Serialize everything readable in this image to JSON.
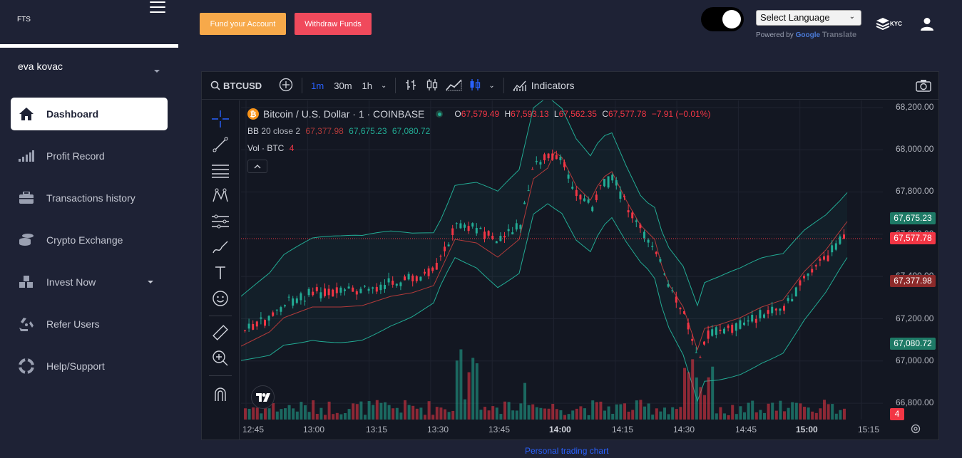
{
  "brand": "FTS",
  "user": {
    "name": "eva kovac"
  },
  "nav": {
    "items": [
      {
        "label": "Dashboard",
        "icon": "home-icon"
      },
      {
        "label": "Profit Record",
        "icon": "bars-signal-icon"
      },
      {
        "label": "Transactions history",
        "icon": "briefcase-icon"
      },
      {
        "label": "Crypto Exchange",
        "icon": "coins-icon"
      },
      {
        "label": "Invest Now",
        "icon": "cubes-icon"
      },
      {
        "label": "Refer Users",
        "icon": "recycle-icon"
      },
      {
        "label": "Help/Support",
        "icon": "life-ring-icon"
      }
    ]
  },
  "topbar": {
    "fund_label": "Fund your Account",
    "withdraw_label": "Withdraw Funds",
    "language_label": "Select Language",
    "powered_by": "Powered by",
    "google": "Google",
    "translate": "Translate",
    "kyc": "KYC"
  },
  "chart": {
    "symbol": "BTCUSD",
    "intervals": [
      "1m",
      "30m",
      "1h"
    ],
    "active_interval": "1m",
    "indicators_label": "Indicators",
    "title": "Bitcoin / U.S. Dollar · 1 · COINBASE",
    "ohlc": {
      "o_label": "O",
      "o": "67,579.49",
      "h_label": "H",
      "h": "67,593.13",
      "l_label": "L",
      "l": "67,562.35",
      "c_label": "C",
      "c": "67,577.78",
      "change": "−7.91 (−0.01%)"
    },
    "bb": {
      "label": "BB",
      "params": "20 close 2",
      "basis": "67,377.98",
      "upper": "67,675.23",
      "lower": "67,080.72"
    },
    "vol": {
      "label": "Vol · BTC",
      "value": "4"
    },
    "price_tags": {
      "upper": "67,675.23",
      "last": "67,577.78",
      "basis": "67,377.98",
      "lower": "67,080.72",
      "vol": "4"
    },
    "y_ticks": [
      "68,200.00",
      "68,000.00",
      "67,800.00",
      "67,600.00",
      "67,400.00",
      "67,200.00",
      "67,000.00",
      "66,800.00"
    ],
    "x_ticks": [
      "12:45",
      "13:00",
      "13:15",
      "13:30",
      "13:45",
      "14:00",
      "14:15",
      "14:30",
      "14:45",
      "15:00",
      "15:15"
    ],
    "colors": {
      "up": "#22ab94",
      "down": "#f23645",
      "bb_band": "#22ab94",
      "bb_basis": "#b23a3a",
      "bg": "#131722"
    }
  },
  "caption": "Personal trading chart"
}
